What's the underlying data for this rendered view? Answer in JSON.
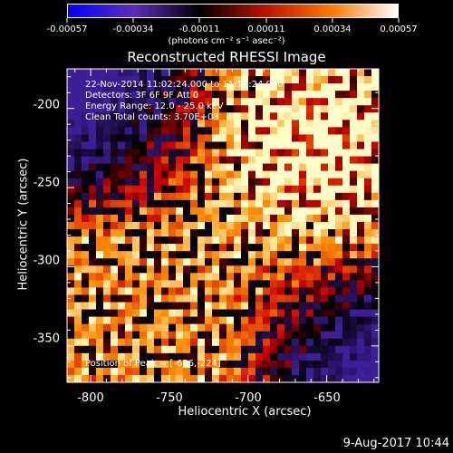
{
  "chart_data": {
    "type": "heatmap",
    "title": "Reconstructed RHESSI Image",
    "xlabel": "Heliocentric X (arcsec)",
    "ylabel": "Heliocentric Y (arcsec)",
    "xlim": [
      -815,
      -617
    ],
    "ylim": [
      -373,
      -175
    ],
    "xticks": [
      -800,
      -750,
      -700,
      -650
    ],
    "yticks": [
      -200,
      -250,
      -300,
      -350
    ],
    "colorbar": {
      "ticks": [
        "-0.00057",
        "-0.00034",
        "-0.00011",
        "0.00011",
        "0.00034",
        "0.00057"
      ],
      "unit_label": "(photons cm⁻² s⁻¹ asec⁻²)",
      "colors": [
        "#0000ff",
        "#5a2dbf",
        "#000000",
        "#c01000",
        "#ff7a00",
        "#ffffff"
      ]
    },
    "annotations": [
      "22-Nov-2014 11:02:24.000 to 11:12:24.000",
      "Detectors: 3F 6F 9F  Att 0",
      "Energy Range: 12.0 - 25.0 keV",
      "Clean     Total counts: 3.70E+03"
    ],
    "peak_label": "Position of Peak = [-656,-224]",
    "peak": [
      -656,
      -224
    ]
  },
  "footer": {
    "date": "9-Aug-2017 10:44"
  }
}
